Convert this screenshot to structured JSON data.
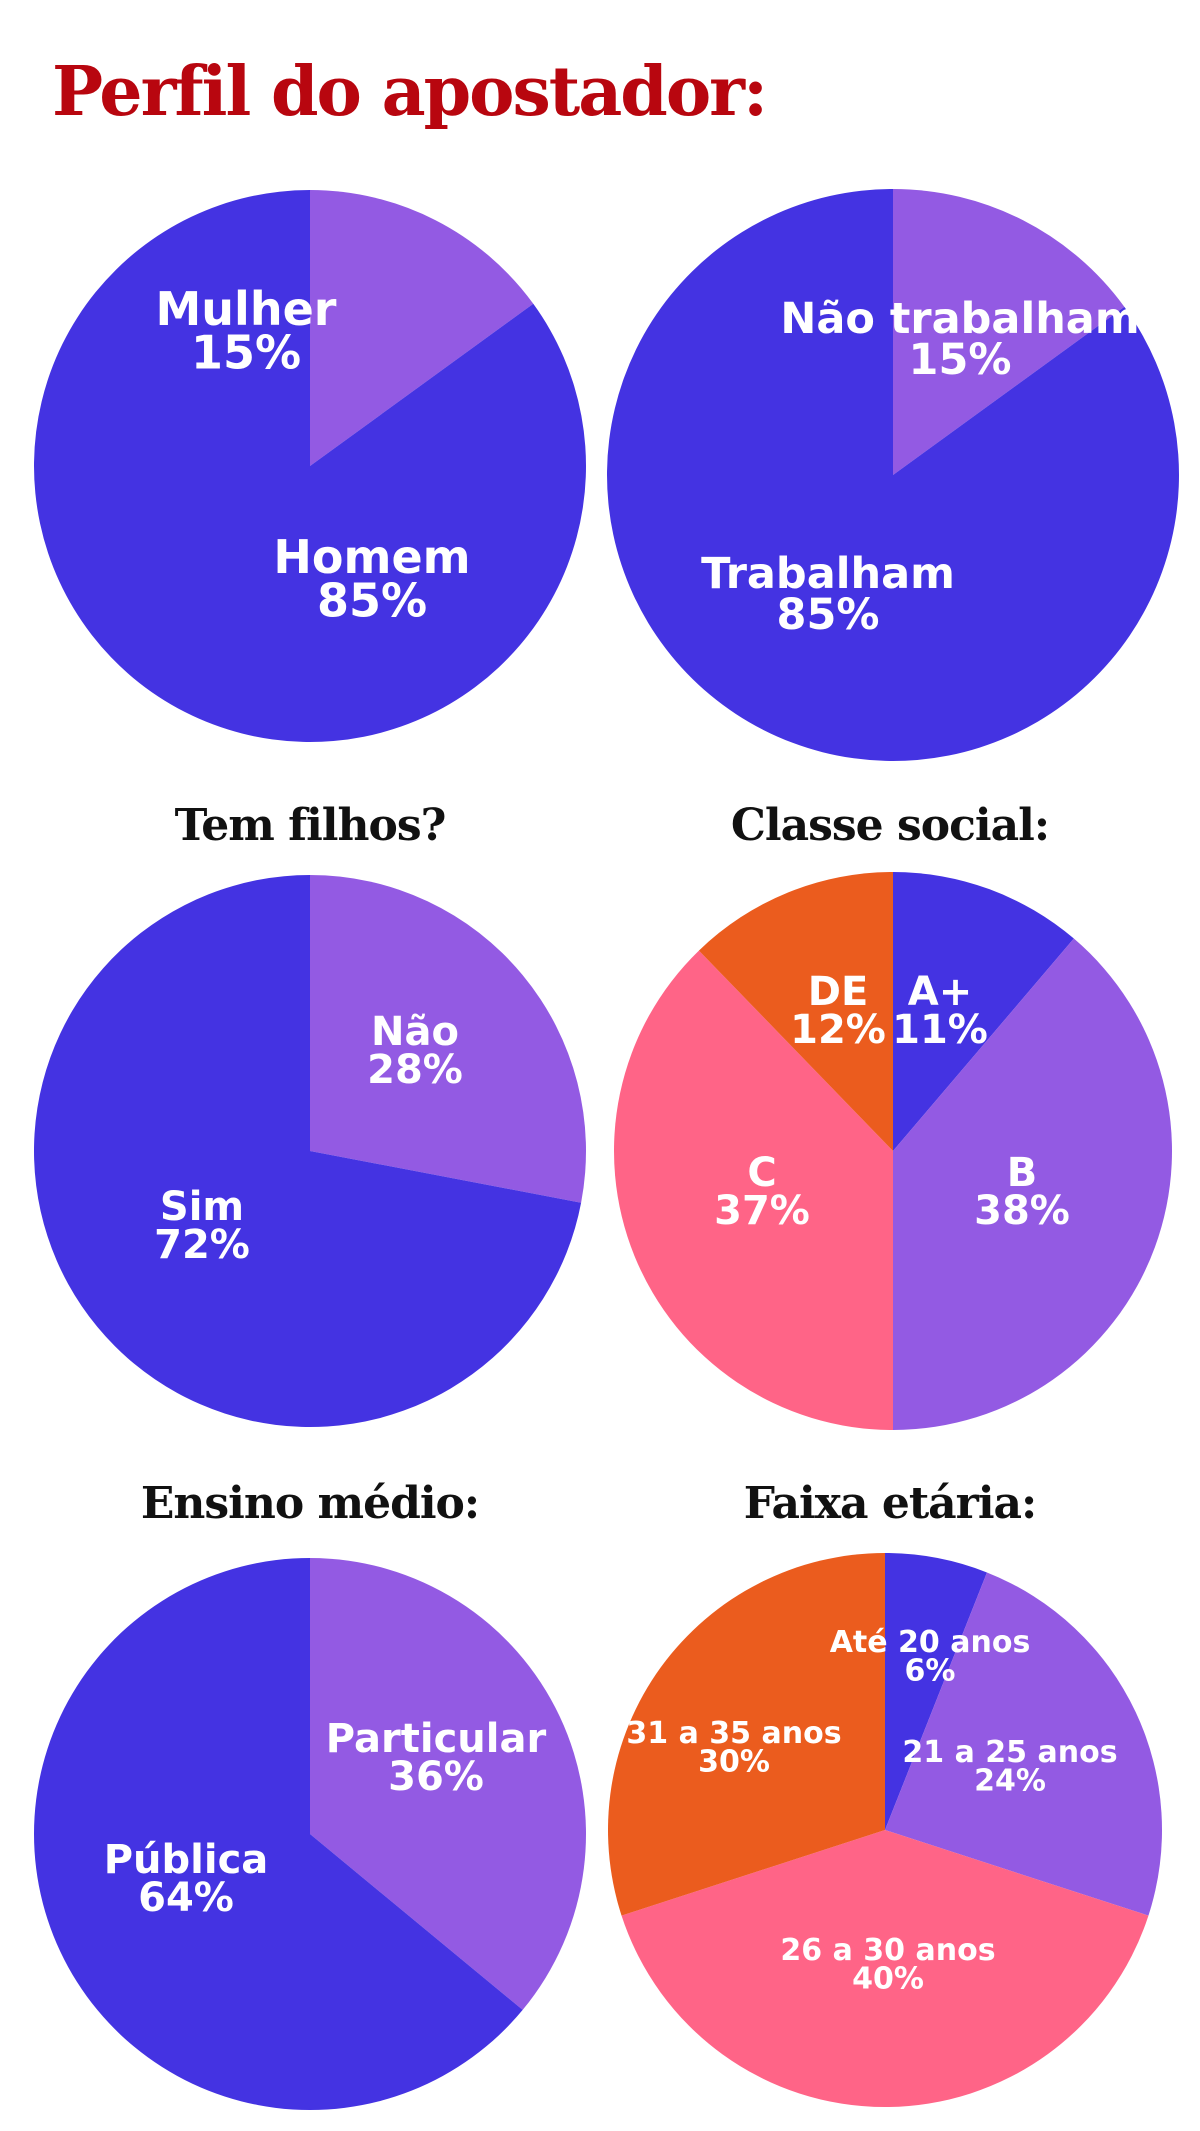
{
  "title": "Perfil do apostador:",
  "colors": {
    "title": "#b8060f",
    "blue": "#4433e2",
    "purple": "#935ae3",
    "pink": "#ff6487",
    "orange": "#eb5c1e"
  },
  "chart_data": [
    {
      "type": "pie",
      "title": "",
      "slices": [
        {
          "label": "Mulher",
          "value": 15,
          "display": "15%",
          "color": "#935ae3"
        },
        {
          "label": "Homem",
          "value": 85,
          "display": "85%",
          "color": "#4433e2"
        }
      ]
    },
    {
      "type": "pie",
      "title": "",
      "slices": [
        {
          "label": "Não trabalham",
          "value": 15,
          "display": "15%",
          "color": "#935ae3"
        },
        {
          "label": "Trabalham",
          "value": 85,
          "display": "85%",
          "color": "#4433e2"
        }
      ]
    },
    {
      "type": "pie",
      "title": "Tem filhos?",
      "slices": [
        {
          "label": "Não",
          "value": 28,
          "display": "28%",
          "color": "#935ae3"
        },
        {
          "label": "Sim",
          "value": 72,
          "display": "72%",
          "color": "#4433e2"
        }
      ]
    },
    {
      "type": "pie",
      "title": "Classe social:",
      "slices": [
        {
          "label": "A+",
          "value": 11,
          "display": "11%",
          "color": "#4433e2"
        },
        {
          "label": "B",
          "value": 38,
          "display": "38%",
          "color": "#935ae3"
        },
        {
          "label": "C",
          "value": 37,
          "display": "37%",
          "color": "#ff6487"
        },
        {
          "label": "DE",
          "value": 12,
          "display": "12%",
          "color": "#eb5c1e"
        }
      ]
    },
    {
      "type": "pie",
      "title": "Ensino médio:",
      "slices": [
        {
          "label": "Particular",
          "value": 36,
          "display": "36%",
          "color": "#935ae3"
        },
        {
          "label": "Pública",
          "value": 64,
          "display": "64%",
          "color": "#4433e2"
        }
      ]
    },
    {
      "type": "pie",
      "title": "Faixa etária:",
      "slices": [
        {
          "label": "Até 20 anos",
          "value": 6,
          "display": "6%",
          "color": "#4433e2"
        },
        {
          "label": "21 a 25 anos",
          "value": 24,
          "display": "24%",
          "color": "#935ae3"
        },
        {
          "label": "26 a 30 anos",
          "value": 40,
          "display": "40%",
          "color": "#ff6487"
        },
        {
          "label": "31 a 35 anos",
          "value": 30,
          "display": "30%",
          "color": "#eb5c1e"
        }
      ]
    }
  ]
}
